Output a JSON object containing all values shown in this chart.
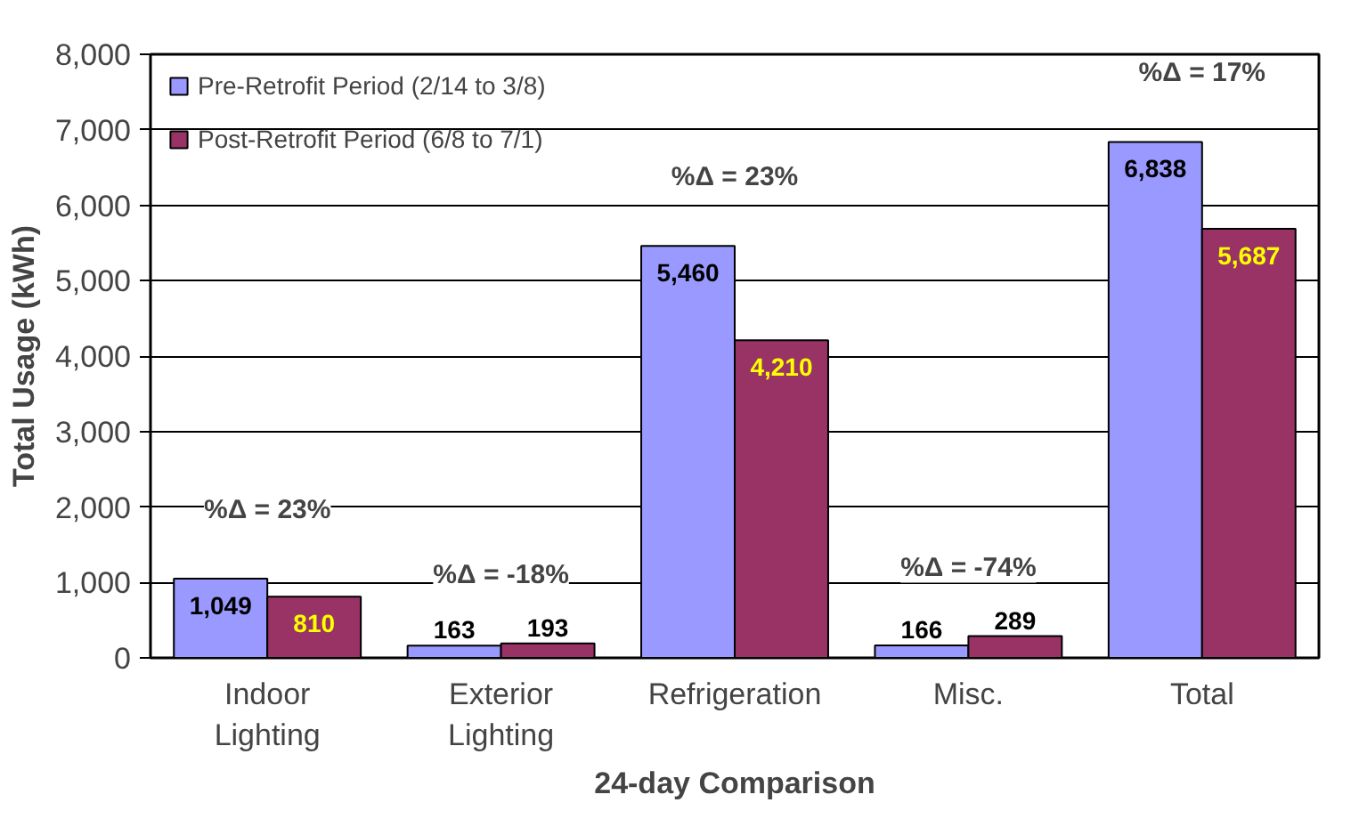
{
  "chart_data": {
    "type": "bar",
    "xlabel": "24-day Comparison",
    "ylabel": "Total Usage (kWh)",
    "categories": [
      "Indoor\nLighting",
      "Exterior\nLighting",
      "Refrigeration",
      "Misc.",
      "Total"
    ],
    "series": [
      {
        "name": "Pre-Retrofit Period (2/14 to 3/8)",
        "color": "#9999ff",
        "values": [
          1049,
          163,
          5460,
          166,
          6838
        ],
        "value_labels": [
          "1,049",
          "163",
          "5,460",
          "166",
          "6,838"
        ]
      },
      {
        "name": "Post-Retrofit Period (6/8 to 7/1)",
        "color": "#993366",
        "values": [
          810,
          193,
          4210,
          289,
          5687
        ],
        "value_labels": [
          "810",
          "193",
          "4,210",
          "289",
          "5,687"
        ]
      }
    ],
    "ylim": [
      0,
      8000
    ],
    "yticks": [
      {
        "value": 0,
        "label": "0"
      },
      {
        "value": 1000,
        "label": "1,000"
      },
      {
        "value": 2000,
        "label": "2,000"
      },
      {
        "value": 3000,
        "label": "3,000"
      },
      {
        "value": 4000,
        "label": "4,000"
      },
      {
        "value": 5000,
        "label": "5,000"
      },
      {
        "value": 6000,
        "label": "6,000"
      },
      {
        "value": 7000,
        "label": "7,000"
      },
      {
        "value": 8000,
        "label": "8,000"
      }
    ],
    "grid": "y",
    "legend": "top left",
    "annotations": [
      "%Δ = 23%",
      "%Δ = -18%",
      "%Δ = 23%",
      "%Δ = -74%",
      "%Δ = 17%"
    ]
  }
}
